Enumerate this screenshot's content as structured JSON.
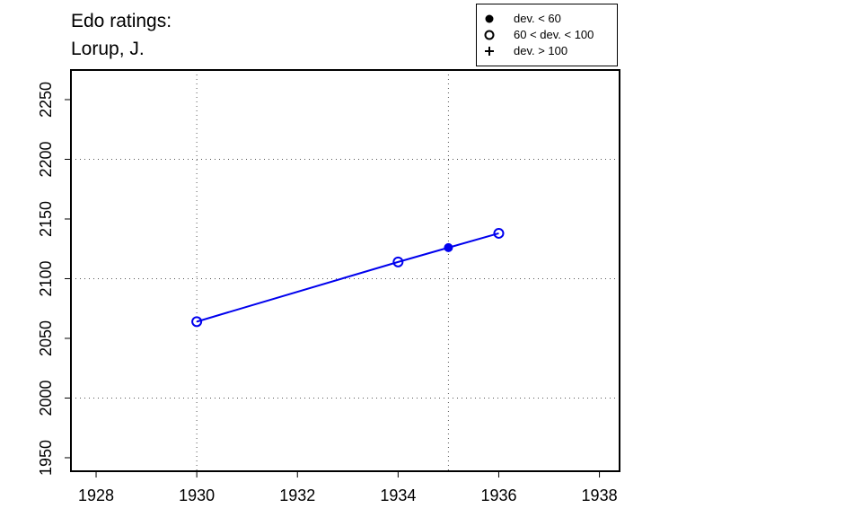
{
  "chart_data": {
    "type": "line",
    "title": "Edo ratings:",
    "subtitle": "Lorup, J.",
    "x": [
      1930,
      1934,
      1935,
      1936
    ],
    "series": [
      {
        "color": "#0000ee",
        "values": [
          2064,
          2114,
          2126,
          2138
        ],
        "markers": [
          "open",
          "open",
          "filled",
          "open"
        ]
      }
    ],
    "xlim": [
      1927.5,
      1938.4
    ],
    "ylim": [
      1938.7,
      2274.8
    ],
    "xticks": [
      1928,
      1930,
      1932,
      1934,
      1936,
      1938
    ],
    "yticks": [
      1950,
      2000,
      2050,
      2100,
      2150,
      2200,
      2250
    ],
    "xgrid": [
      1930,
      1935
    ],
    "ygrid": [
      2000,
      2100,
      2200
    ],
    "legend": [
      {
        "marker": "filled",
        "label": "dev. < 60"
      },
      {
        "marker": "open",
        "label": "60 < dev. < 100"
      },
      {
        "marker": "plus",
        "label": "dev. > 100"
      }
    ]
  }
}
